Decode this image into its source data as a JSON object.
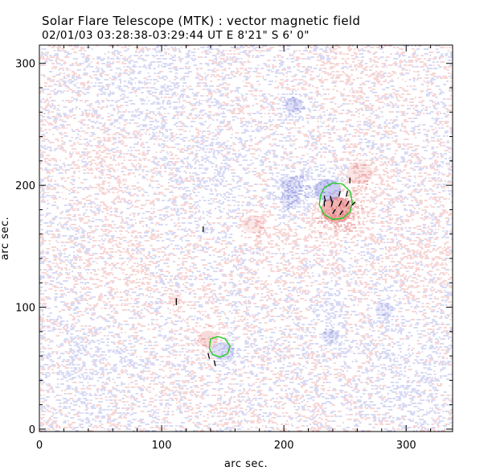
{
  "chart_data": {
    "type": "heatmap",
    "title": "Solar Flare Telescope (MTK) : vector magnetic field",
    "subtitle": "02/01/03  03:28:38-03:29:44 UT    E 8'21\"  S 6' 0\"",
    "xlabel": "arc sec.",
    "ylabel": "arc sec.",
    "xlim": [
      0,
      338
    ],
    "ylim": [
      -2,
      315
    ],
    "xticks": [
      0,
      100,
      200,
      300
    ],
    "yticks": [
      0,
      100,
      200,
      300
    ],
    "xtick_labels": [
      "0",
      "100",
      "200",
      "300"
    ],
    "ytick_labels": [
      "0",
      "100",
      "200",
      "300"
    ],
    "colors": {
      "positive_polarity": "#e26a6a",
      "negative_polarity": "#6f76d6",
      "contour": "#22cc22",
      "vectors": "#000000",
      "axes": "#000000"
    },
    "regions": [
      {
        "polarity": "positive",
        "x": 243,
        "y": 180,
        "radius": 14,
        "strength": 1.0
      },
      {
        "polarity": "negative",
        "x": 236,
        "y": 196,
        "radius": 12,
        "strength": 0.7
      },
      {
        "polarity": "negative",
        "x": 207,
        "y": 200,
        "radius": 10,
        "strength": 0.35
      },
      {
        "polarity": "negative",
        "x": 205,
        "y": 188,
        "radius": 9,
        "strength": 0.35
      },
      {
        "polarity": "positive",
        "x": 262,
        "y": 210,
        "radius": 12,
        "strength": 0.35
      },
      {
        "polarity": "negative",
        "x": 208,
        "y": 266,
        "radius": 8,
        "strength": 0.45
      },
      {
        "polarity": "positive",
        "x": 175,
        "y": 168,
        "radius": 10,
        "strength": 0.3
      },
      {
        "polarity": "positive",
        "x": 138,
        "y": 74,
        "radius": 9,
        "strength": 0.5
      },
      {
        "polarity": "negative",
        "x": 150,
        "y": 64,
        "radius": 10,
        "strength": 0.45
      },
      {
        "polarity": "positive",
        "x": 111,
        "y": 106,
        "radius": 6,
        "strength": 0.3
      },
      {
        "polarity": "negative",
        "x": 238,
        "y": 100,
        "radius": 9,
        "strength": 0.25
      },
      {
        "polarity": "negative",
        "x": 282,
        "y": 98,
        "radius": 8,
        "strength": 0.3
      },
      {
        "polarity": "negative",
        "x": 238,
        "y": 76,
        "radius": 8,
        "strength": 0.3
      },
      {
        "polarity": "positive",
        "x": 55,
        "y": 210,
        "radius": 22,
        "strength": 0.18
      },
      {
        "polarity": "negative",
        "x": 145,
        "y": 205,
        "radius": 25,
        "strength": 0.2
      },
      {
        "polarity": "positive",
        "x": 60,
        "y": 125,
        "radius": 20,
        "strength": 0.15
      },
      {
        "polarity": "negative",
        "x": 40,
        "y": 60,
        "radius": 25,
        "strength": 0.2
      },
      {
        "polarity": "positive",
        "x": 310,
        "y": 140,
        "radius": 20,
        "strength": 0.2
      },
      {
        "polarity": "negative",
        "x": 300,
        "y": 40,
        "radius": 22,
        "strength": 0.22
      },
      {
        "polarity": "positive",
        "x": 200,
        "y": 140,
        "radius": 18,
        "strength": 0.18
      },
      {
        "polarity": "negative",
        "x": 90,
        "y": 285,
        "radius": 25,
        "strength": 0.2
      },
      {
        "polarity": "positive",
        "x": 250,
        "y": 290,
        "radius": 20,
        "strength": 0.18
      }
    ],
    "contours": [
      {
        "name": "main-spot-contour",
        "points": [
          [
            233,
            198
          ],
          [
            240,
            202
          ],
          [
            248,
            201
          ],
          [
            254,
            195
          ],
          [
            256,
            186
          ],
          [
            254,
            178
          ],
          [
            248,
            173
          ],
          [
            240,
            172
          ],
          [
            233,
            176
          ],
          [
            229,
            184
          ],
          [
            230,
            192
          ]
        ]
      },
      {
        "name": "small-spot-contour",
        "points": [
          [
            140,
            74
          ],
          [
            146,
            76
          ],
          [
            152,
            74
          ],
          [
            156,
            68
          ],
          [
            154,
            62
          ],
          [
            148,
            59
          ],
          [
            142,
            61
          ],
          [
            139,
            66
          ]
        ]
      }
    ],
    "vectors": [
      {
        "x": 254,
        "y": 202,
        "dx": 0,
        "dy": 4
      },
      {
        "x": 233,
        "y": 191,
        "dx": 1,
        "dy": -4
      },
      {
        "x": 238,
        "y": 191,
        "dx": 1,
        "dy": -4
      },
      {
        "x": 245,
        "y": 191,
        "dx": 1,
        "dy": 4
      },
      {
        "x": 251,
        "y": 191,
        "dx": 1,
        "dy": 4
      },
      {
        "x": 233,
        "y": 183,
        "dx": 0,
        "dy": 4
      },
      {
        "x": 239,
        "y": 183,
        "dx": 1,
        "dy": 4
      },
      {
        "x": 245,
        "y": 183,
        "dx": 2,
        "dy": 4
      },
      {
        "x": 251,
        "y": 183,
        "dx": 2,
        "dy": 4
      },
      {
        "x": 256,
        "y": 184,
        "dx": 2,
        "dy": 2
      },
      {
        "x": 240,
        "y": 177,
        "dx": 2,
        "dy": 3
      },
      {
        "x": 246,
        "y": 176,
        "dx": 2,
        "dy": 3
      },
      {
        "x": 134,
        "y": 162,
        "dx": 0,
        "dy": 4
      },
      {
        "x": 112,
        "y": 102,
        "dx": 0,
        "dy": 5
      },
      {
        "x": 138,
        "y": 62,
        "dx": 1,
        "dy": -4
      },
      {
        "x": 143,
        "y": 56,
        "dx": 1,
        "dy": -4
      }
    ]
  }
}
